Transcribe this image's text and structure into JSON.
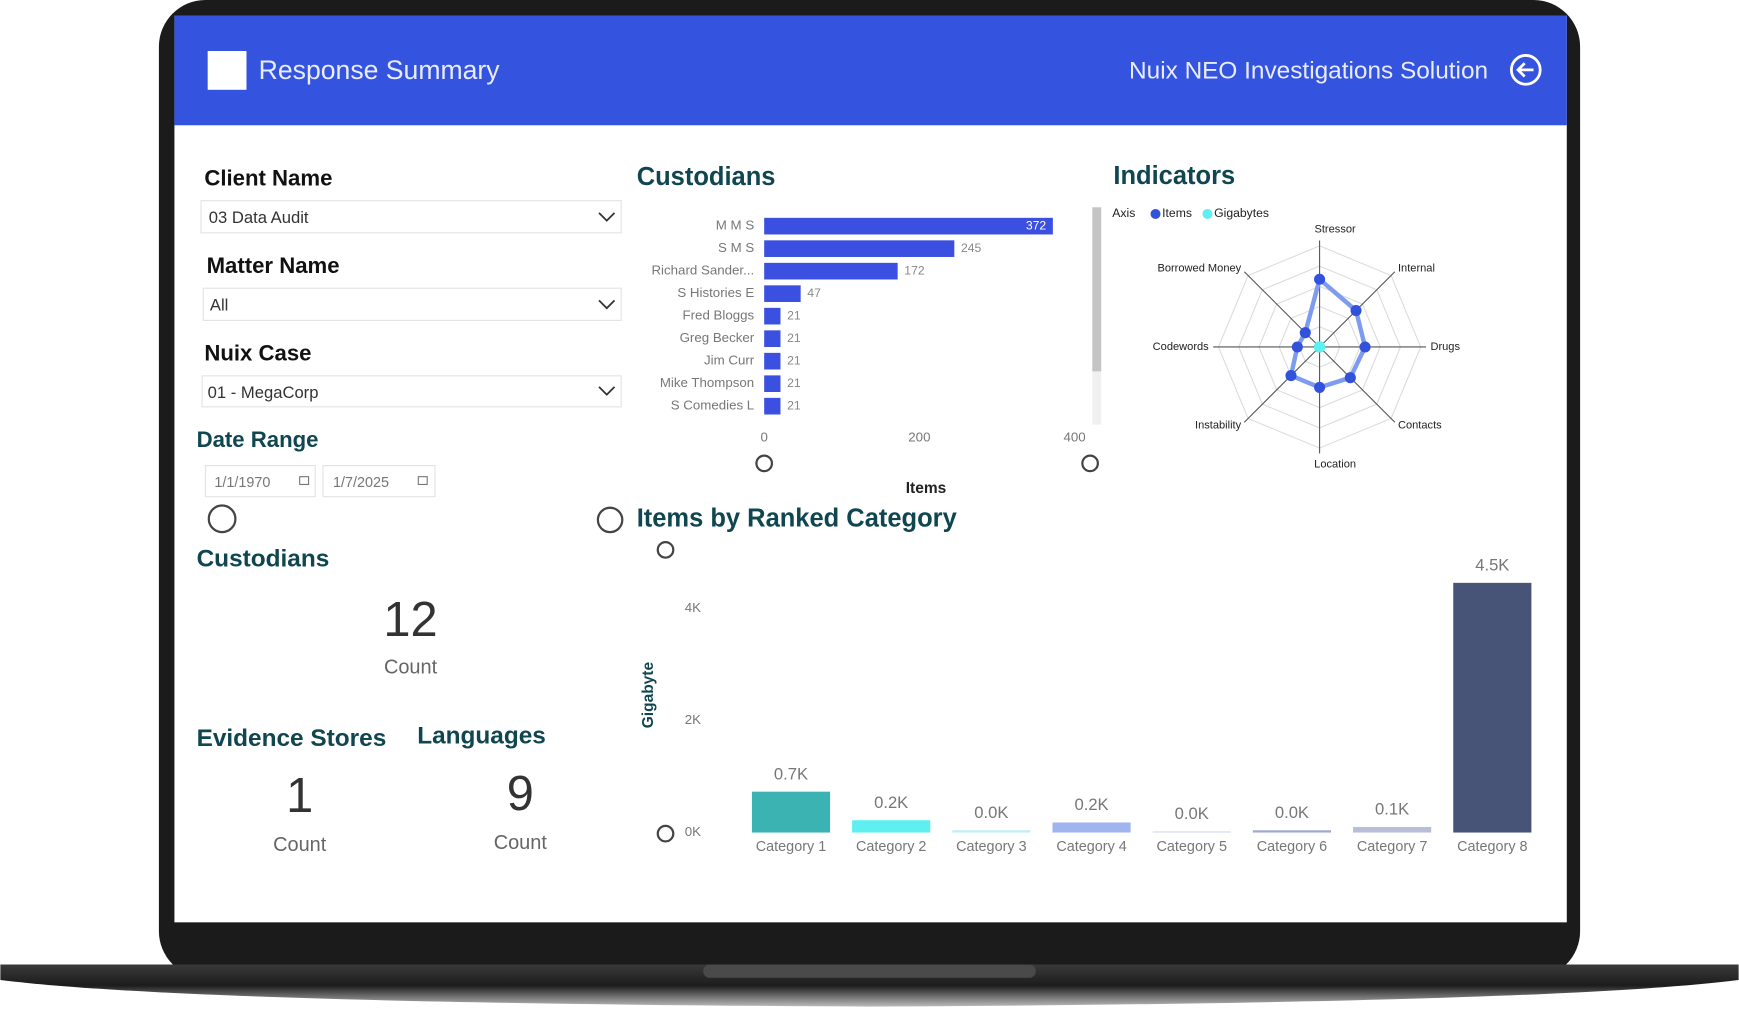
{
  "header": {
    "title": "Response Summary",
    "subtitle": "Nuix NEO Investigations Solution"
  },
  "filters": [
    {
      "label": "Client Name",
      "value": "03 Data Audit"
    },
    {
      "label": "Matter Name",
      "value": "All"
    },
    {
      "label": "Nuix Case",
      "value": "01 - MegaCorp"
    }
  ],
  "date_range": {
    "label": "Date Range",
    "start": "1/1/1970",
    "end": "1/7/2025"
  },
  "cards": [
    {
      "title": "Custodians",
      "value": 12,
      "caption": "Count"
    },
    {
      "title": "Evidence Stores",
      "value": 1,
      "caption": "Count"
    },
    {
      "title": "Languages",
      "value": 9,
      "caption": "Count"
    }
  ],
  "chart_data": [
    {
      "type": "hbar",
      "title": "Custodians",
      "x_label": "Items",
      "categories": [
        "M M S",
        "S M S",
        "Richard Sander...",
        "S Histories E",
        "Fred Bloggs",
        "Greg Becker",
        "Jim Curr",
        "Mike Thompson",
        "S Comedies L"
      ],
      "values": [
        372,
        245,
        172,
        47,
        21,
        21,
        21,
        21,
        21
      ],
      "color": "#3b4fe0",
      "xlim": [
        0,
        400
      ],
      "xticks": [
        0,
        200,
        400
      ]
    },
    {
      "type": "radar",
      "title": "Indicators",
      "legend_title": "Axis",
      "axes": [
        "Stressor",
        "Internal",
        "Drugs",
        "Contacts",
        "Location",
        "Instability",
        "Codewords",
        "Borrowed Money"
      ],
      "rlim": [
        0,
        100
      ],
      "series": [
        {
          "name": "Items",
          "color": "#3352dc",
          "values": [
            67,
            51,
            45,
            43,
            40,
            40,
            22,
            20
          ]
        },
        {
          "name": "Gigabytes",
          "color": "#5ef0f0",
          "values": [
            0,
            0,
            0,
            0,
            0,
            0,
            0,
            0
          ]
        }
      ]
    },
    {
      "type": "bar",
      "title": "Items by Ranked Category",
      "y_label": "Gigabyte",
      "categories": [
        "Category 1",
        "Category 2",
        "Category 3",
        "Category 4",
        "Category 5",
        "Category 6",
        "Category 7",
        "Category 8"
      ],
      "values": [
        730,
        220,
        40,
        180,
        20,
        40,
        100,
        4460
      ],
      "value_labels": [
        "0.7K",
        "0.2K",
        "0.0K",
        "0.2K",
        "0.0K",
        "0.0K",
        "0.1K",
        "4.5K"
      ],
      "colors": [
        "#3bb3b3",
        "#5ef0f0",
        "#b8f0f5",
        "#a0b4f0",
        "#d0d8f5",
        "#9fa8d0",
        "#b8bdd8",
        "#485378"
      ],
      "ylim": [
        0,
        4700
      ],
      "yticks": [
        {
          "value": 0,
          "label": "0K"
        },
        {
          "value": 2000,
          "label": "2K"
        },
        {
          "value": 4000,
          "label": "4K"
        }
      ],
      "grid": false
    }
  ]
}
